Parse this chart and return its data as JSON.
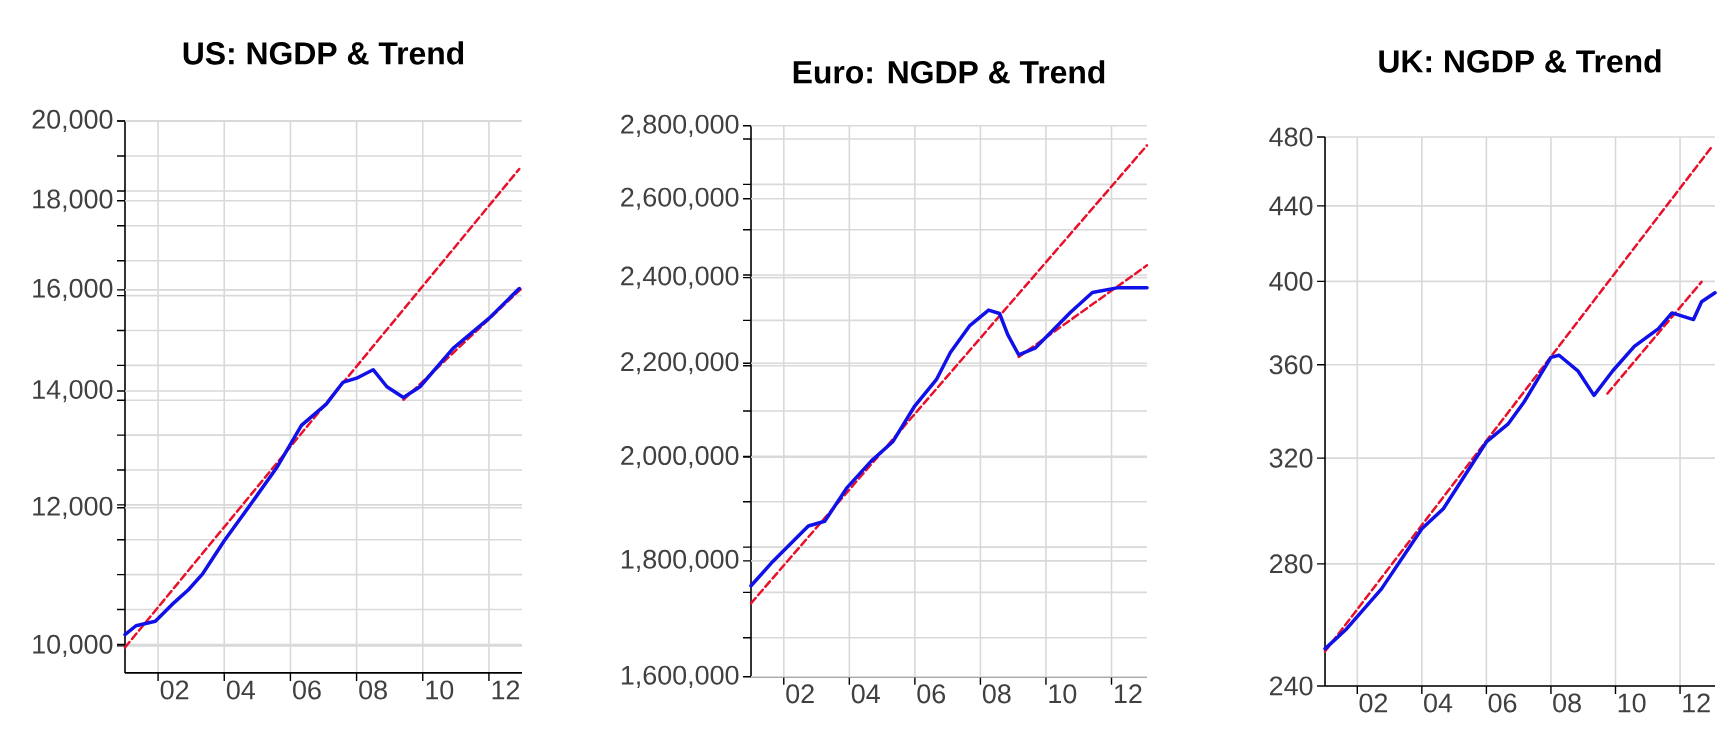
{
  "chart_data": [
    {
      "type": "line",
      "title": "US: NGDP & Trend",
      "log": true,
      "grid": true,
      "marker": "none",
      "xlim": [
        "2001-01",
        "2013-01"
      ],
      "ylim": [
        9650,
        20000
      ],
      "xticks": [
        {
          "value": "2002-01",
          "label": null
        },
        {
          "value": "2004-01",
          "label": null
        },
        {
          "value": "2006-01",
          "label": null
        },
        {
          "value": "2008-01",
          "label": null
        },
        {
          "value": "2010-01",
          "label": null
        },
        {
          "value": "2012-01",
          "label": null
        },
        {
          "value": "2002-07",
          "label": "02"
        },
        {
          "value": "2004-07",
          "label": "04"
        },
        {
          "value": "2006-07",
          "label": "06"
        },
        {
          "value": "2008-07",
          "label": "08"
        },
        {
          "value": "2010-07",
          "label": "10"
        },
        {
          "value": "2012-07",
          "label": "12"
        }
      ],
      "yticks": [
        {
          "value": 10000,
          "label": "10,000"
        },
        {
          "value": 12000,
          "label": "12,000"
        },
        {
          "value": 14000,
          "label": "14,000"
        },
        {
          "value": 16000,
          "label": "16,000"
        },
        {
          "value": 18000,
          "label": "18,000"
        },
        {
          "value": 20000,
          "label": "20,000"
        }
      ],
      "series": [
        {
          "color": "#e8102a",
          "line_style": "dashed",
          "x": [
            "2001-01",
            "2012-12"
          ],
          "values": [
            9980,
            18770
          ]
        },
        {
          "color": "#e8102a",
          "line_style": "dashed",
          "x": [
            "2009-06",
            "2013-01"
          ],
          "values": [
            13840,
            16040
          ]
        },
        {
          "color": "#1010e8",
          "line_style": "solid",
          "x": [
            "2001-01",
            "2001-05",
            "2001-12",
            "2002-06",
            "2002-12",
            "2003-05",
            "2004-01",
            "2004-10",
            "2005-08",
            "2006-05",
            "2007-02",
            "2007-08",
            "2008-01",
            "2008-07",
            "2008-12",
            "2009-06",
            "2009-12",
            "2010-12",
            "2012-01",
            "2012-12"
          ],
          "values": [
            10150,
            10270,
            10330,
            10560,
            10770,
            10990,
            11490,
            12020,
            12650,
            13380,
            13760,
            14160,
            14240,
            14400,
            14080,
            13880,
            14080,
            14810,
            15410,
            16030
          ]
        }
      ]
    },
    {
      "type": "line",
      "title": "Euro: NGDP & Trend",
      "log": true,
      "grid": true,
      "marker": "none",
      "xlim": [
        "2001-01",
        "2013-02"
      ],
      "ylim": [
        1600000,
        2800000
      ],
      "xticks": [
        {
          "value": "2002-01",
          "label": null
        },
        {
          "value": "2004-01",
          "label": null
        },
        {
          "value": "2006-01",
          "label": null
        },
        {
          "value": "2008-01",
          "label": null
        },
        {
          "value": "2010-01",
          "label": null
        },
        {
          "value": "2012-01",
          "label": null
        },
        {
          "value": "2002-07",
          "label": "02"
        },
        {
          "value": "2004-07",
          "label": "04"
        },
        {
          "value": "2006-07",
          "label": "06"
        },
        {
          "value": "2008-07",
          "label": "08"
        },
        {
          "value": "2010-07",
          "label": "10"
        },
        {
          "value": "2012-07",
          "label": "12"
        }
      ],
      "yticks": [
        {
          "value": 1600000,
          "label": "1,600,000"
        },
        {
          "value": 1800000,
          "label": "1,800,000"
        },
        {
          "value": 2000000,
          "label": "2,000,000"
        },
        {
          "value": 2200000,
          "label": "2,200,000"
        },
        {
          "value": 2400000,
          "label": "2,400,000"
        },
        {
          "value": 2600000,
          "label": "2,600,000"
        },
        {
          "value": 2800000,
          "label": "2,800,000"
        }
      ],
      "series": [
        {
          "color": "#e8102a",
          "line_style": "dashed",
          "x": [
            "2001-01",
            "2013-02"
          ],
          "values": [
            1724000,
            2745000
          ]
        },
        {
          "color": "#e8102a",
          "line_style": "dashed",
          "x": [
            "2009-03",
            "2013-02"
          ],
          "values": [
            2214000,
            2430000
          ]
        },
        {
          "color": "#1010e8",
          "line_style": "solid",
          "x": [
            "2001-01",
            "2001-09",
            "2002-10",
            "2003-04",
            "2003-12",
            "2004-09",
            "2005-05",
            "2006-01",
            "2006-09",
            "2007-02",
            "2007-09",
            "2008-04",
            "2008-08",
            "2008-11",
            "2009-03",
            "2009-09",
            "2010-02",
            "2010-10",
            "2011-06",
            "2012-03",
            "2013-02"
          ],
          "values": [
            1755000,
            1799000,
            1865000,
            1874000,
            1938000,
            1992000,
            2032000,
            2107000,
            2165000,
            2224000,
            2285000,
            2322000,
            2314000,
            2265000,
            2219000,
            2234000,
            2265000,
            2317000,
            2364000,
            2375000,
            2375000
          ]
        }
      ]
    },
    {
      "type": "line",
      "title": "UK: NGDP & Trend",
      "log": true,
      "grid": true,
      "marker": "none",
      "xlim": [
        "2001-01",
        "2013-02"
      ],
      "ylim": [
        240,
        480
      ],
      "xticks": [
        {
          "value": "2002-01",
          "label": null
        },
        {
          "value": "2004-01",
          "label": null
        },
        {
          "value": "2006-01",
          "label": null
        },
        {
          "value": "2008-01",
          "label": null
        },
        {
          "value": "2010-01",
          "label": null
        },
        {
          "value": "2012-01",
          "label": null
        },
        {
          "value": "2002-07",
          "label": "02"
        },
        {
          "value": "2004-07",
          "label": "04"
        },
        {
          "value": "2006-07",
          "label": "06"
        },
        {
          "value": "2008-07",
          "label": "08"
        },
        {
          "value": "2010-07",
          "label": "10"
        },
        {
          "value": "2012-07",
          "label": "12"
        }
      ],
      "yticks": [
        240,
        280,
        320,
        360,
        400,
        440,
        480
      ],
      "series": [
        {
          "color": "#e8102a",
          "line_style": "dashed",
          "x": [
            "2001-01",
            "2013-01"
          ],
          "values": [
            250.7,
            474.5
          ]
        },
        {
          "color": "#e8102a",
          "line_style": "dashed",
          "x": [
            "2009-10",
            "2012-09"
          ],
          "values": [
            347.2,
            399.8
          ]
        },
        {
          "color": "#1010e8",
          "line_style": "solid",
          "x": [
            "2001-01",
            "2001-09",
            "2002-10",
            "2004-01",
            "2004-09",
            "2006-01",
            "2006-09",
            "2007-03",
            "2008-01",
            "2008-04",
            "2008-11",
            "2009-05",
            "2009-12",
            "2010-08",
            "2011-05",
            "2011-10",
            "2012-06",
            "2012-09",
            "2013-02"
          ],
          "values": [
            251.5,
            257.9,
            271.3,
            292.7,
            300.2,
            326.6,
            334.0,
            343.5,
            363.4,
            364.4,
            357.3,
            346.4,
            357.3,
            368.5,
            376.9,
            384.4,
            381.2,
            389.9,
            394.3
          ]
        }
      ]
    }
  ]
}
